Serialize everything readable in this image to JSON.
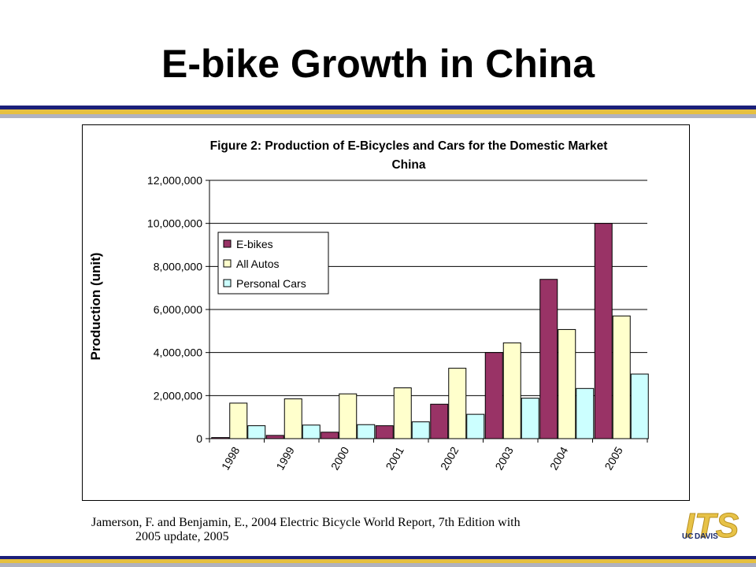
{
  "slide": {
    "title": "E-bike Growth in China",
    "citation_line1": "Jamerson, F. and Benjamin, E., 2004 Electric Bicycle World Report, 7th Edition with",
    "citation_line2": "2005 update, 2005",
    "logo_text": "ITS",
    "logo_sub_uc": "UC",
    "logo_sub_davis": "DAVIS"
  },
  "colors": {
    "stripe_dark": "#1b1f7a",
    "stripe_gold": "#e6c040",
    "stripe_gray": "#b0b2c0",
    "logo_gold": "#e7c247",
    "logo_navy": "#1b2a6b"
  },
  "chart_data": {
    "type": "bar",
    "title_line1": "Figure 2: Production of E-Bicycles and Cars for the Domestic Market",
    "title_line2": "China",
    "ylabel": "Production (unit)",
    "xlabel": "",
    "ylim": [
      0,
      12000000
    ],
    "yticks": [
      0,
      2000000,
      4000000,
      6000000,
      8000000,
      10000000,
      12000000
    ],
    "ytick_labels": [
      "0",
      "2,000,000",
      "4,000,000",
      "6,000,000",
      "8,000,000",
      "10,000,000",
      "12,000,000"
    ],
    "grid": "horizontal",
    "legend_position": "upper-left",
    "categories": [
      "1998",
      "1999",
      "2000",
      "2001",
      "2002",
      "2003",
      "2004",
      "2005"
    ],
    "series": [
      {
        "name": "E-bikes",
        "color": "#993366",
        "values": [
          50000,
          150000,
          300000,
          600000,
          1600000,
          4000000,
          7400000,
          10000000
        ]
      },
      {
        "name": "All Autos",
        "color": "#ffffcc",
        "values": [
          1650000,
          1850000,
          2080000,
          2360000,
          3270000,
          4450000,
          5070000,
          5700000
        ]
      },
      {
        "name": "Personal Cars",
        "color": "#ccffff",
        "values": [
          600000,
          630000,
          650000,
          780000,
          1130000,
          1880000,
          2330000,
          3000000
        ]
      }
    ]
  }
}
